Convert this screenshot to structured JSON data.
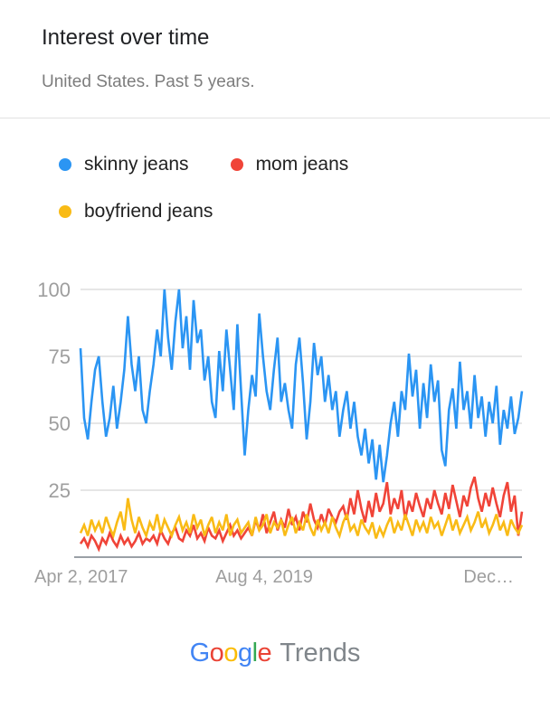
{
  "header": {
    "title": "Interest over time",
    "subtitle": "United States. Past 5 years."
  },
  "legend": [
    {
      "label": "skinny jeans",
      "color": "#2B95F3"
    },
    {
      "label": "mom jeans",
      "color": "#F04438"
    },
    {
      "label": "boyfriend jeans",
      "color": "#F9BB16"
    }
  ],
  "footer": {
    "logo_letters": [
      {
        "ch": "G",
        "color": "#4285F4"
      },
      {
        "ch": "o",
        "color": "#EA4335"
      },
      {
        "ch": "o",
        "color": "#FBBC05"
      },
      {
        "ch": "g",
        "color": "#4285F4"
      },
      {
        "ch": "l",
        "color": "#34A853"
      },
      {
        "ch": "e",
        "color": "#EA4335"
      }
    ],
    "product": "Trends"
  },
  "chart_data": {
    "type": "line",
    "title": "Interest over time",
    "xlabel": "",
    "ylabel": "",
    "ylim": [
      0,
      100
    ],
    "y_ticks": [
      25,
      50,
      75,
      100
    ],
    "x_tick_labels": [
      "Apr 2, 2017",
      "Aug 4, 2019",
      "Dec…"
    ],
    "grid": true,
    "legend_position": "top-left",
    "axis_color": "#9e9e9e",
    "grid_color": "#dddddd",
    "baseline_color": "#9aa0a6",
    "series": [
      {
        "name": "skinny jeans",
        "color": "#2B95F3",
        "values": [
          78,
          52,
          44,
          58,
          70,
          75,
          58,
          45,
          52,
          64,
          48,
          58,
          70,
          90,
          72,
          62,
          75,
          55,
          50,
          62,
          72,
          85,
          75,
          100,
          82,
          70,
          88,
          100,
          78,
          90,
          70,
          96,
          80,
          85,
          66,
          75,
          58,
          52,
          77,
          62,
          85,
          70,
          55,
          87,
          62,
          38,
          55,
          68,
          60,
          91,
          75,
          62,
          55,
          70,
          82,
          58,
          65,
          55,
          48,
          72,
          82,
          65,
          44,
          58,
          80,
          68,
          75,
          58,
          68,
          55,
          62,
          45,
          55,
          62,
          48,
          58,
          45,
          38,
          48,
          35,
          44,
          29,
          42,
          28,
          38,
          50,
          58,
          45,
          62,
          55,
          76,
          60,
          70,
          48,
          65,
          52,
          72,
          58,
          66,
          40,
          34,
          55,
          63,
          48,
          73,
          55,
          62,
          48,
          68,
          52,
          60,
          45,
          58,
          50,
          64,
          42,
          55,
          48,
          60,
          46,
          52,
          62
        ]
      },
      {
        "name": "mom jeans",
        "color": "#F04438",
        "values": [
          5,
          7,
          4,
          8,
          6,
          3,
          7,
          5,
          9,
          6,
          4,
          8,
          5,
          7,
          4,
          6,
          9,
          5,
          7,
          6,
          8,
          5,
          10,
          7,
          5,
          9,
          11,
          7,
          6,
          10,
          8,
          12,
          7,
          9,
          6,
          11,
          8,
          7,
          10,
          6,
          9,
          12,
          8,
          10,
          7,
          9,
          11,
          8,
          14,
          10,
          16,
          9,
          13,
          17,
          10,
          14,
          11,
          18,
          12,
          15,
          10,
          17,
          13,
          20,
          14,
          11,
          16,
          12,
          18,
          15,
          13,
          17,
          19,
          14,
          22,
          16,
          25,
          18,
          13,
          21,
          15,
          24,
          17,
          20,
          28,
          16,
          22,
          18,
          25,
          14,
          21,
          17,
          24,
          19,
          15,
          22,
          18,
          25,
          20,
          16,
          24,
          18,
          27,
          21,
          15,
          23,
          19,
          26,
          30,
          22,
          17,
          24,
          19,
          26,
          20,
          15,
          23,
          28,
          17,
          23,
          8,
          17
        ]
      },
      {
        "name": "boyfriend jeans",
        "color": "#F9BB16",
        "values": [
          9,
          12,
          8,
          14,
          10,
          13,
          9,
          15,
          11,
          8,
          13,
          17,
          10,
          22,
          14,
          9,
          15,
          11,
          8,
          13,
          10,
          16,
          9,
          14,
          11,
          8,
          12,
          15,
          10,
          13,
          9,
          16,
          11,
          14,
          8,
          12,
          15,
          9,
          13,
          10,
          16,
          8,
          12,
          14,
          9,
          11,
          13,
          8,
          15,
          10,
          12,
          16,
          9,
          13,
          11,
          14,
          8,
          12,
          15,
          9,
          13,
          10,
          16,
          11,
          8,
          14,
          10,
          13,
          9,
          15,
          11,
          8,
          13,
          16,
          10,
          12,
          8,
          14,
          11,
          9,
          13,
          7,
          11,
          8,
          12,
          15,
          9,
          13,
          10,
          16,
          12,
          8,
          14,
          10,
          13,
          9,
          15,
          11,
          13,
          8,
          12,
          16,
          10,
          14,
          9,
          12,
          15,
          10,
          13,
          17,
          11,
          14,
          9,
          12,
          16,
          10,
          13,
          8,
          14,
          11,
          9,
          12
        ]
      }
    ]
  }
}
